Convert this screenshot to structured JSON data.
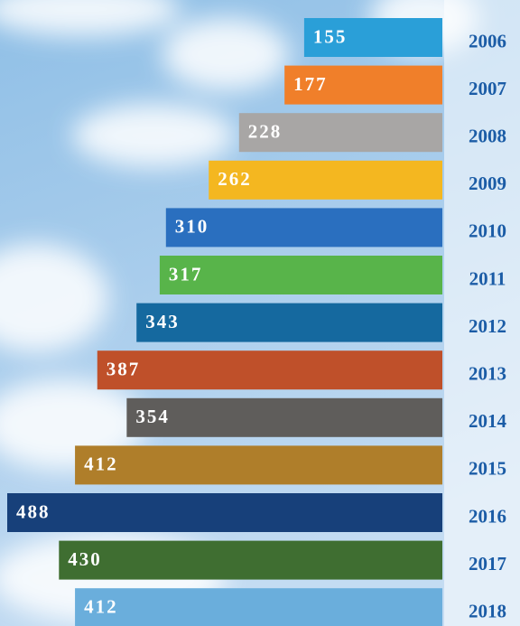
{
  "chart_data": {
    "type": "bar",
    "orientation": "horizontal",
    "categories": [
      "2006",
      "2007",
      "2008",
      "2009",
      "2010",
      "2011",
      "2012",
      "2013",
      "2014",
      "2015",
      "2016",
      "2017",
      "2018"
    ],
    "values": [
      155,
      177,
      228,
      262,
      310,
      317,
      343,
      387,
      354,
      412,
      488,
      430,
      412
    ],
    "colors": [
      "#2a9fd8",
      "#f07f2a",
      "#a8a6a5",
      "#f4b720",
      "#2a6fbf",
      "#58b44a",
      "#15699f",
      "#bf502a",
      "#5f5d5b",
      "#af7e2a",
      "#17407a",
      "#3f6e31",
      "#6aaedc"
    ]
  }
}
